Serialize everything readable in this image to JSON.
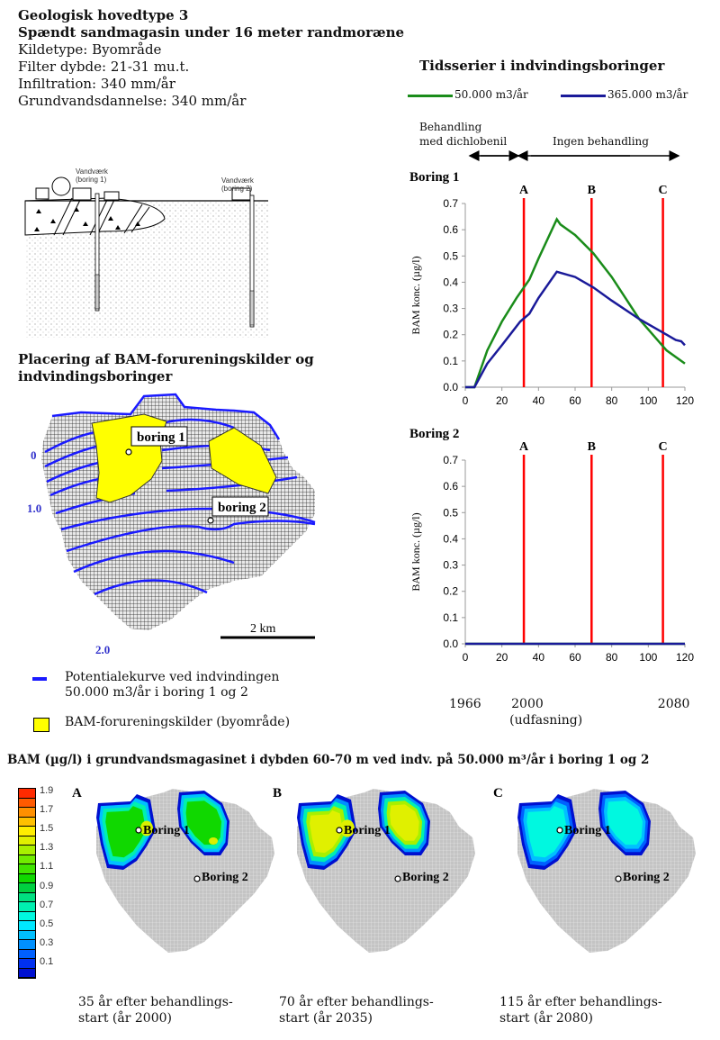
{
  "header": {
    "line1": "Geologisk hovedtype 3",
    "line2": "Spændt sandmagasin under 16 meter randmoræne",
    "line3": "Kildetype: Byområde",
    "line4": "Filter dybde: 21-31 mu.t.",
    "line5": "Infiltration: 340 mm/år",
    "line6": "Grundvandsdannelse: 340 mm/år"
  },
  "cross_section": {
    "label_boring1": [
      "Vandværk",
      "(boring 1)"
    ],
    "label_boring2": [
      "Vandværk",
      "(boring 2)"
    ]
  },
  "map_section": {
    "title_line1": "Placering af BAM-forureningskilder og",
    "title_line2": "indvindingsboringer",
    "boring1": "boring 1",
    "boring2": "boring 2",
    "contour_labels": [
      "0",
      "1.0",
      "2.0"
    ],
    "scale": "2 km",
    "legend": {
      "line_label1": "Potentialekurve ved indvindingen",
      "line_label2": "50.000 m3/år i boring 1 og 2",
      "box_label": "BAM-forureningskilder (byområde)"
    },
    "colors": {
      "contour": "#1a1aff",
      "source": "#ffff00"
    }
  },
  "timeseries": {
    "title": "Tidsserier i indvindingsboringer",
    "legend": [
      {
        "label": "50.000 m3/år",
        "color": "#1a8c1a"
      },
      {
        "label": "365.000 m3/år",
        "color": "#1a1a99"
      }
    ],
    "period1_line1": "Behandling",
    "period1_line2": "med dichlobenil",
    "period2": "Ingen behandling",
    "year_labels": [
      {
        "x": 0,
        "text": "1966"
      },
      {
        "x": 34,
        "text": "2000"
      },
      {
        "x": 114,
        "text": "2080"
      }
    ],
    "year_note": "(udfasning)"
  },
  "chart_data": [
    {
      "type": "line",
      "title": "Boring 1",
      "xlabel": "",
      "ylabel": "BAM konc. (µg/l)",
      "xlim": [
        0,
        120
      ],
      "ylim": [
        0,
        0.7
      ],
      "xticks": [
        0,
        20,
        40,
        60,
        80,
        100,
        120
      ],
      "yticks": [
        "0.0",
        "0.1",
        "0.2",
        "0.3",
        "0.4",
        "0.5",
        "0.6",
        "0.7"
      ],
      "markers": [
        {
          "label": "A",
          "x": 32
        },
        {
          "label": "B",
          "x": 69
        },
        {
          "label": "C",
          "x": 108
        }
      ],
      "series": [
        {
          "name": "50.000 m3/år",
          "x": [
            0,
            5,
            12,
            20,
            28,
            35,
            40,
            50,
            52,
            60,
            70,
            80,
            95,
            105,
            110,
            120
          ],
          "y": [
            0,
            0,
            0.14,
            0.25,
            0.34,
            0.41,
            0.49,
            0.64,
            0.62,
            0.58,
            0.51,
            0.42,
            0.26,
            0.18,
            0.14,
            0.09
          ]
        },
        {
          "name": "365.000 m3/år",
          "x": [
            0,
            5,
            12,
            20,
            30,
            35,
            40,
            50,
            60,
            70,
            80,
            95,
            100,
            110,
            115,
            118,
            120
          ],
          "y": [
            0,
            0,
            0.09,
            0.16,
            0.25,
            0.28,
            0.34,
            0.44,
            0.42,
            0.38,
            0.33,
            0.26,
            0.24,
            0.2,
            0.18,
            0.175,
            0.16
          ]
        }
      ]
    },
    {
      "type": "line",
      "title": "Boring 2",
      "xlabel": "",
      "ylabel": "BAM konc. (µg/l)",
      "xlim": [
        0,
        120
      ],
      "ylim": [
        0,
        0.7
      ],
      "xticks": [
        0,
        20,
        40,
        60,
        80,
        100,
        120
      ],
      "yticks": [
        "0.0",
        "0.1",
        "0.2",
        "0.3",
        "0.4",
        "0.5",
        "0.6",
        "0.7"
      ],
      "markers": [
        {
          "label": "A",
          "x": 32
        },
        {
          "label": "B",
          "x": 69
        },
        {
          "label": "C",
          "x": 108
        }
      ],
      "series": [
        {
          "name": "50.000 m3/år",
          "x": [
            0,
            120
          ],
          "y": [
            0,
            0
          ]
        },
        {
          "name": "365.000 m3/år",
          "x": [
            0,
            120
          ],
          "y": [
            0,
            0
          ]
        }
      ]
    }
  ],
  "bottom": {
    "title": "BAM (µg/l) i grundvandsmagasinet i dybden 60-70 m ved indv. på 50.000 m³/år i boring 1 og 2",
    "colorbar": {
      "labels": [
        "1.9",
        "1.7",
        "1.5",
        "1.3",
        "1.1",
        "0.9",
        "0.7",
        "0.5",
        "0.3",
        "0.1"
      ],
      "colors": [
        "#ff2a00",
        "#ff5a00",
        "#ff9000",
        "#ffc000",
        "#ffee00",
        "#e0f000",
        "#a8f000",
        "#70ec00",
        "#40e400",
        "#10d800",
        "#00d040",
        "#00e080",
        "#00f0b0",
        "#00f8e0",
        "#00e8ff",
        "#00c0ff",
        "#0090ff",
        "#0060ff",
        "#0030f0",
        "#0010d0"
      ]
    },
    "panels": [
      {
        "letter": "A",
        "boring1": "Boring 1",
        "boring2": "Boring 2",
        "caption1": "35 år efter behandlings-",
        "caption2": "start (år 2000)"
      },
      {
        "letter": "B",
        "boring1": "Boring 1",
        "boring2": "Boring 2",
        "caption1": "70 år efter behandlings-",
        "caption2": "start (år 2035)"
      },
      {
        "letter": "C",
        "boring1": "Boring 1",
        "boring2": "Boring 2",
        "caption1": "115 år efter behandlings-",
        "caption2": "start (år 2080)"
      }
    ]
  }
}
